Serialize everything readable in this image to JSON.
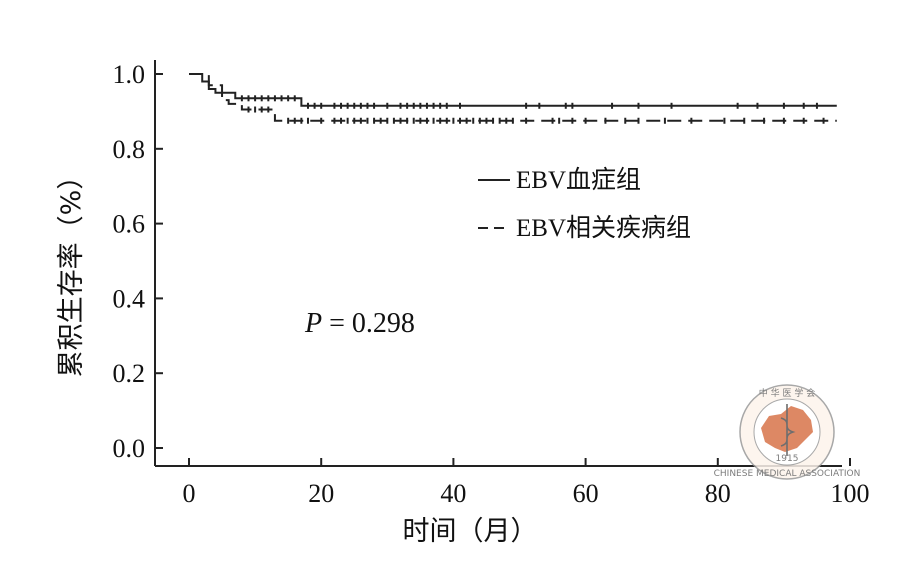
{
  "chart_data": {
    "type": "line",
    "title": "",
    "xlabel": "时间（月）",
    "ylabel": "累积生存率（%）",
    "xlim": [
      0,
      100
    ],
    "ylim": [
      0,
      1.0
    ],
    "xticks": [
      "0",
      "20",
      "40",
      "60",
      "80",
      "100"
    ],
    "yticks": [
      "0.0",
      "0.2",
      "0.4",
      "0.6",
      "0.8",
      "1.0"
    ],
    "grid": false,
    "legend_position": "top-right",
    "annotation": {
      "p_label": "P",
      "p_rest": " = 0.298"
    },
    "series": [
      {
        "name": "EBV血症组",
        "style": "solid",
        "color": "#222222",
        "steps": [
          [
            0,
            1.0
          ],
          [
            2,
            0.98
          ],
          [
            3,
            0.96
          ],
          [
            4,
            0.95
          ],
          [
            7,
            0.935
          ],
          [
            17,
            0.915
          ],
          [
            98,
            0.915
          ]
        ],
        "censor": [
          8,
          9,
          10,
          11,
          12,
          13,
          14,
          15,
          16,
          18,
          19,
          20,
          22,
          23,
          24,
          25,
          26,
          27,
          28,
          30,
          32,
          33,
          34,
          35,
          36,
          37,
          38,
          39,
          41,
          51,
          53,
          57,
          58,
          64,
          68,
          73,
          83,
          86,
          90,
          93,
          95
        ]
      },
      {
        "name": "EBV相关疾病组",
        "style": "dashed",
        "color": "#222222",
        "steps": [
          [
            0,
            1.0
          ],
          [
            3,
            0.97
          ],
          [
            5,
            0.93
          ],
          [
            6,
            0.92
          ],
          [
            8,
            0.905
          ],
          [
            13,
            0.875
          ],
          [
            98,
            0.875
          ]
        ],
        "censor": [
          9,
          10,
          11,
          12,
          15,
          16,
          17,
          18,
          20,
          22,
          23,
          24,
          25,
          26,
          27,
          28,
          29,
          30,
          31,
          32,
          33,
          34,
          35,
          36,
          37,
          38,
          39,
          40,
          41,
          42,
          43,
          44,
          45,
          46,
          47,
          48,
          49,
          51,
          55,
          56,
          58,
          60,
          63,
          66,
          68,
          72,
          76,
          81,
          84,
          87,
          90,
          93,
          96
        ]
      }
    ]
  },
  "seal": {
    "top_text": "中 华 医 学 会",
    "bottom_text": "CHINESE MEDICAL ASSOCIATION",
    "year": "1915"
  }
}
